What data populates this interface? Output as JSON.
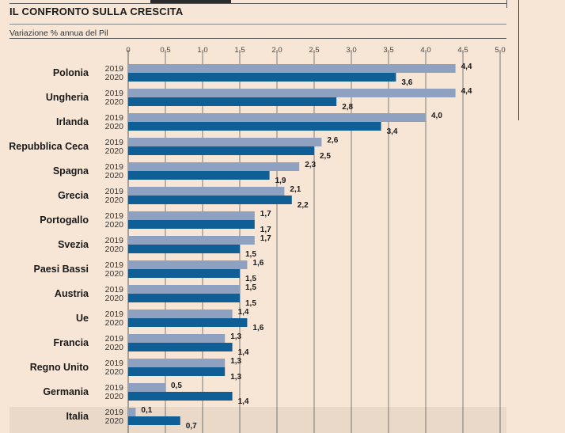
{
  "title": "IL CONFRONTO SULLA CRESCITA",
  "subtitle": "Variazione % annua del Pil",
  "colors": {
    "background": "#f7e6d6",
    "bar_2019": "#8ea1c1",
    "bar_2020": "#0f5f96",
    "highlight_row": "#ead8c8",
    "grid": "#4a4a4a"
  },
  "chart_data": {
    "type": "bar",
    "orientation": "horizontal",
    "categories": [
      "Polonia",
      "Ungheria",
      "Irlanda",
      "Repubblica Ceca",
      "Spagna",
      "Grecia",
      "Portogallo",
      "Svezia",
      "Paesi Bassi",
      "Austria",
      "Ue",
      "Francia",
      "Regno Unito",
      "Germania",
      "Italia"
    ],
    "series": [
      {
        "name": "2019",
        "values": [
          4.4,
          4.4,
          4.0,
          2.6,
          2.3,
          2.1,
          1.7,
          1.7,
          1.6,
          1.5,
          1.4,
          1.3,
          1.3,
          0.5,
          0.1
        ]
      },
      {
        "name": "2020",
        "values": [
          3.6,
          2.8,
          3.4,
          2.5,
          1.9,
          2.2,
          1.7,
          1.5,
          1.5,
          1.5,
          1.6,
          1.4,
          1.3,
          1.4,
          0.7
        ]
      }
    ],
    "value_labels": {
      "2019": [
        "4,4",
        "4,4",
        "4,0",
        "2,6",
        "2,3",
        "2,1",
        "1,7",
        "1,7",
        "1,6",
        "1,5",
        "1,4",
        "1,3",
        "1,3",
        "0,5",
        "0,1"
      ],
      "2020": [
        "3,6",
        "2,8",
        "3,4",
        "2,5",
        "1,9",
        "2,2",
        "1,7",
        "1,5",
        "1,5",
        "1,5",
        "1,6",
        "1,4",
        "1,3",
        "1,4",
        "0,7"
      ]
    },
    "xlim": [
      0,
      5.0
    ],
    "ticks": [
      0,
      0.5,
      1.0,
      1.5,
      2.0,
      2.5,
      3.0,
      3.5,
      4.0,
      4.5,
      5.0
    ],
    "tick_labels": [
      "0",
      "0,5",
      "1,0",
      "1,5",
      "2,0",
      "2,5",
      "3,0",
      "3,5",
      "4,0",
      "4,5",
      "5,0"
    ],
    "highlighted_category": "Italia",
    "grid": true,
    "legend": "year labels beside each bar pair"
  }
}
